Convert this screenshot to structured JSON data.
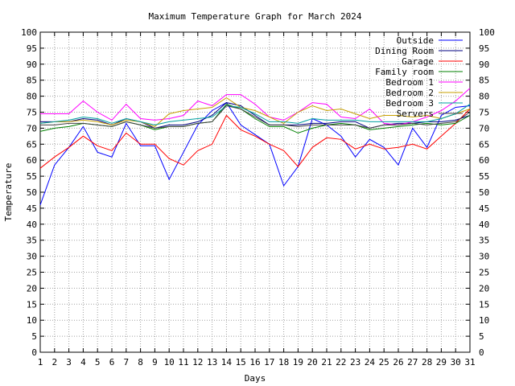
{
  "chart_data": {
    "type": "line",
    "title": "Maximum Temperature Graph for March 2024",
    "xlabel": "Days",
    "ylabel": "Temperature",
    "xlim": [
      1,
      31
    ],
    "ylim": [
      0,
      100
    ],
    "grid": true,
    "legend_position": "top-right",
    "x": [
      1,
      2,
      3,
      4,
      5,
      6,
      7,
      8,
      9,
      10,
      11,
      12,
      13,
      14,
      15,
      16,
      17,
      18,
      19,
      20,
      21,
      22,
      23,
      24,
      25,
      26,
      27,
      28,
      29,
      30,
      31
    ],
    "y_ticks": [
      0,
      5,
      10,
      15,
      20,
      25,
      30,
      35,
      40,
      45,
      50,
      55,
      60,
      65,
      70,
      75,
      80,
      85,
      90,
      95,
      100
    ],
    "x_ticks": [
      1,
      2,
      3,
      4,
      5,
      6,
      7,
      8,
      9,
      10,
      11,
      12,
      13,
      14,
      15,
      16,
      17,
      18,
      19,
      20,
      21,
      22,
      23,
      24,
      25,
      26,
      27,
      28,
      29,
      30,
      31
    ],
    "series": [
      {
        "name": "Outside",
        "color": "#0000ff",
        "values": [
          46,
          58.5,
          64,
          70.5,
          62.5,
          61,
          71.5,
          64.5,
          64.5,
          54,
          62.5,
          71,
          75.5,
          78,
          71,
          68,
          65,
          52,
          58,
          73,
          71,
          67.5,
          61,
          66.5,
          64,
          58.5,
          70,
          64,
          74,
          76.5,
          77
        ]
      },
      {
        "name": "Dining Room",
        "color": "#000080",
        "values": [
          72,
          72,
          72,
          73,
          72.5,
          71,
          73,
          72,
          70,
          71,
          71,
          72,
          74,
          78,
          77,
          74,
          71,
          71,
          71,
          71.5,
          71.5,
          72,
          72,
          70,
          71,
          71.5,
          71.5,
          72,
          72,
          72.5,
          74
        ]
      },
      {
        "name": "Garage",
        "color": "#ff0000",
        "values": [
          57.5,
          61,
          64,
          67.5,
          64.5,
          63,
          68.5,
          65,
          65,
          60.5,
          58.5,
          63,
          65,
          74,
          69.5,
          67.5,
          65,
          63,
          58,
          64,
          67,
          66.5,
          63.5,
          65,
          63.5,
          64,
          65,
          63.5,
          67.5,
          71.5,
          76
        ]
      },
      {
        "name": "Family room",
        "color": "#008000",
        "values": [
          69,
          70,
          70.5,
          71.5,
          71,
          70.5,
          72,
          71,
          69.5,
          70.5,
          70.5,
          71.5,
          72,
          77.5,
          76,
          73,
          70.5,
          70.5,
          68.5,
          70,
          71,
          71.5,
          71,
          69.5,
          70,
          70.5,
          71,
          71.5,
          71,
          71.5,
          74
        ]
      },
      {
        "name": "Bedroom 1",
        "color": "#ff00ff",
        "values": [
          74.5,
          74.5,
          74.5,
          78.5,
          75,
          72.5,
          77.5,
          73,
          72.5,
          73,
          74,
          78.5,
          77,
          80.5,
          80.5,
          77.5,
          73.5,
          72.5,
          75,
          78,
          77.5,
          73.5,
          73,
          76,
          71.5,
          71,
          72,
          73.5,
          75.5,
          78.5,
          82.5
        ]
      },
      {
        "name": "Bedroom 2",
        "color": "#c8a000",
        "values": [
          71.5,
          72,
          72,
          72.5,
          72,
          71,
          72.5,
          72,
          70.5,
          74.5,
          75.5,
          76,
          76.5,
          79.5,
          76.5,
          75.5,
          73.5,
          71.5,
          75,
          77,
          75.5,
          76,
          74.5,
          73,
          74,
          74,
          73.5,
          74,
          73,
          74.5,
          76
        ]
      },
      {
        "name": "Bedroom 3",
        "color": "#00a0a0",
        "values": [
          71.5,
          72,
          72.5,
          73.5,
          73,
          71.5,
          73,
          72,
          71,
          72,
          72.5,
          73,
          73.5,
          77,
          76.5,
          74.5,
          72,
          72,
          71.5,
          73,
          72.5,
          72.5,
          72.5,
          72,
          72,
          72,
          72,
          72,
          73,
          74.5,
          77.5
        ]
      },
      {
        "name": "Servers",
        "color": "#404040",
        "values": [
          71,
          71,
          71.5,
          71.5,
          71,
          70.5,
          72,
          71,
          70,
          70.5,
          70.5,
          71.5,
          72,
          77,
          76,
          73.5,
          71,
          71,
          70.5,
          71,
          71,
          71,
          71,
          70,
          71,
          71,
          71.5,
          71,
          71.5,
          72,
          75
        ]
      }
    ]
  }
}
